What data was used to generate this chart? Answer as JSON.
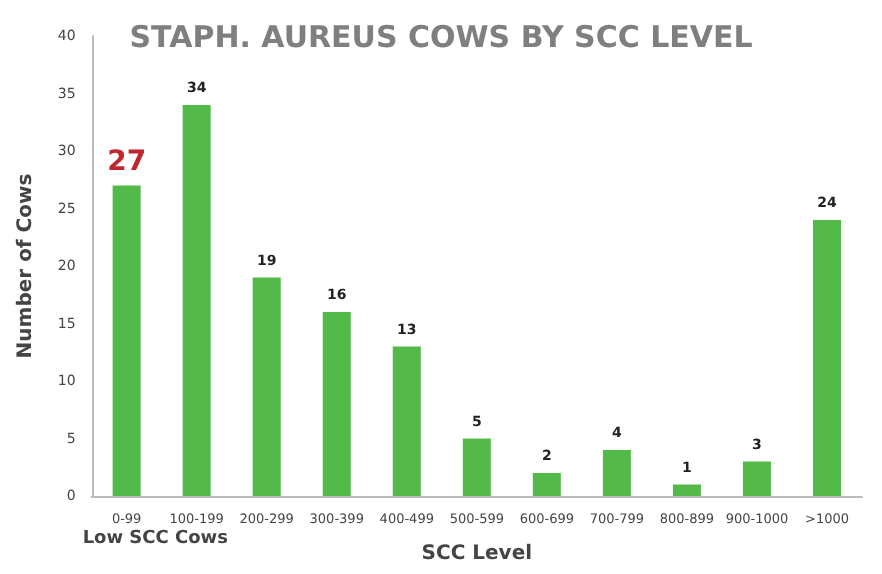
{
  "chart_data": {
    "type": "bar",
    "title": "STAPH. AUREUS COWS BY SCC LEVEL",
    "xlabel": "SCC Level",
    "ylabel": "Number of Cows",
    "categories": [
      "0-99",
      "100-199",
      "200-299",
      "300-399",
      "400-499",
      "500-599",
      "600-699",
      "700-799",
      "800-899",
      "900-1000",
      ">1000"
    ],
    "values": [
      27,
      34,
      19,
      16,
      13,
      5,
      2,
      4,
      1,
      3,
      24
    ],
    "color": "#53b948",
    "ylim": [
      0,
      40
    ],
    "yticks": [
      0,
      5,
      10,
      15,
      20,
      25,
      30,
      35,
      40
    ],
    "data_labels": true,
    "grid": false,
    "annotations": [
      "Low SCC Cows"
    ]
  }
}
